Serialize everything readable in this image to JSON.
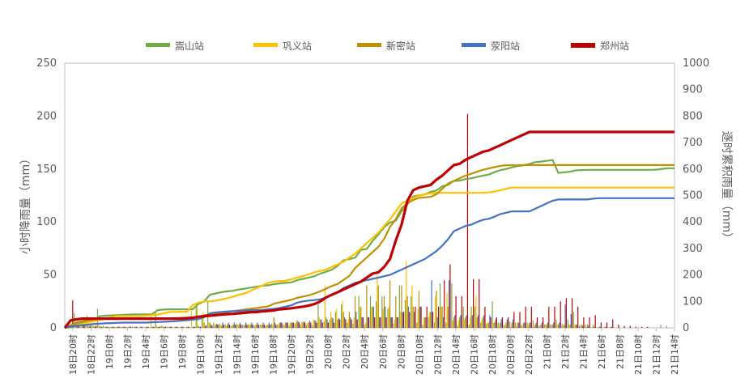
{
  "chart_data": {
    "type": "bar+line",
    "title": "",
    "y_left_label": "小时降雨量（mm）",
    "y_right_label": "逐时累积雨量（mm）",
    "y_left_range": [
      0,
      250
    ],
    "y_left_ticks": [
      "0",
      "50",
      "100",
      "150",
      "200",
      "250"
    ],
    "y_right_range": [
      0,
      1000
    ],
    "y_right_ticks": [
      "0",
      "100",
      "200",
      "300",
      "400",
      "500",
      "600",
      "700",
      "800",
      "900",
      "1000"
    ],
    "x_tick_labels": [
      "18日20时",
      "18日22时",
      "19日0时",
      "19日2时",
      "19日4时",
      "19日6时",
      "19日8时",
      "19日10时",
      "19日12时",
      "19日14时",
      "19日16时",
      "19日18时",
      "19日20时",
      "19日22时",
      "20日0时",
      "20日2时",
      "20日4时",
      "20日6时",
      "20日8时",
      "20日10时",
      "20日12时",
      "20日14时",
      "20日16时",
      "20日18时",
      "20日20时",
      "20日22时",
      "21日0时",
      "21日2时",
      "21日4时",
      "21日6时",
      "21日8时",
      "21日10时",
      "21日12时",
      "21日14时"
    ],
    "legend_position": "top",
    "grid": false,
    "series": [
      {
        "name": "嵩山站",
        "color": "#70ad47",
        "hourly": [
          0,
          2,
          14,
          4,
          3,
          3,
          18,
          2,
          1,
          1,
          1,
          1,
          1,
          0,
          0,
          0,
          16,
          2,
          1,
          0,
          0,
          0,
          0,
          20,
          10,
          25,
          5,
          4,
          3,
          2,
          4,
          3,
          3,
          2,
          3,
          2,
          4,
          3,
          3,
          2,
          4,
          3,
          3,
          2,
          22,
          6,
          8,
          15,
          22,
          5,
          4,
          30,
          3,
          30,
          25,
          30,
          18,
          4,
          40,
          26,
          30,
          5,
          3,
          10,
          5,
          42,
          5,
          42,
          2,
          20,
          3,
          20,
          5,
          4,
          25,
          5,
          3,
          6,
          5,
          3,
          5,
          7,
          2,
          3,
          3,
          8,
          4,
          8,
          15,
          2,
          3,
          0,
          0,
          0,
          0,
          0,
          0,
          0,
          0,
          0,
          0,
          0,
          0,
          3,
          2,
          0
        ],
        "cumulative": [
          0,
          2,
          16,
          20,
          23,
          26,
          44,
          46,
          47,
          48,
          49,
          50,
          51,
          51,
          51,
          51,
          67,
          69,
          70,
          70,
          70,
          70,
          70,
          90,
          100,
          125,
          130,
          135,
          138,
          140,
          145,
          148,
          152,
          155,
          159,
          161,
          165,
          168,
          170,
          172,
          180,
          185,
          190,
          195,
          205,
          212,
          220,
          235,
          255,
          260,
          265,
          295,
          298,
          328,
          353,
          380,
          398,
          405,
          440,
          466,
          496,
          501,
          504,
          514,
          519,
          535,
          540,
          555,
          556,
          562,
          565,
          570,
          575,
          579,
          588,
          596,
          600,
          606,
          611,
          614,
          619,
          626,
          628,
          631,
          634,
          585,
          588,
          590,
          595,
          596,
          597,
          597,
          597,
          597,
          597,
          597,
          597,
          597,
          597,
          597,
          597,
          597,
          598,
          601,
          603,
          603
        ]
      },
      {
        "name": "巩义站",
        "color": "#ffc000",
        "hourly": [
          0,
          1,
          2,
          1,
          12,
          2,
          2,
          1,
          1,
          1,
          1,
          1,
          1,
          1,
          1,
          12,
          2,
          2,
          1,
          1,
          1,
          1,
          16,
          20,
          15,
          5,
          3,
          3,
          2,
          2,
          3,
          2,
          3,
          3,
          3,
          3,
          3,
          3,
          3,
          5,
          5,
          6,
          5,
          8,
          10,
          40,
          15,
          18,
          25,
          8,
          10,
          20,
          5,
          20,
          50,
          18,
          20,
          8,
          15,
          63,
          40,
          18,
          10,
          15,
          30,
          20,
          33,
          7,
          7,
          8,
          10,
          30,
          8,
          5,
          5,
          3,
          2,
          2,
          2,
          2,
          3,
          2,
          2,
          3,
          3,
          3,
          2,
          3,
          3,
          2,
          1,
          1,
          0,
          0,
          0,
          0,
          0,
          0,
          0,
          0,
          0,
          0,
          0,
          0,
          0,
          0
        ],
        "cumulative": [
          0,
          5,
          10,
          15,
          20,
          25,
          30,
          35,
          40,
          45,
          45,
          45,
          45,
          45,
          46,
          48,
          50,
          55,
          60,
          60,
          61,
          61,
          85,
          95,
          100,
          100,
          103,
          107,
          112,
          118,
          125,
          130,
          140,
          150,
          160,
          170,
          175,
          176,
          178,
          183,
          190,
          195,
          202,
          210,
          215,
          220,
          230,
          240,
          250,
          265,
          280,
          300,
          320,
          340,
          360,
          385,
          410,
          440,
          470,
          480,
          490,
          500,
          505,
          508,
          510,
          510,
          510,
          510,
          510,
          510,
          510,
          510,
          510,
          512,
          515,
          520,
          525,
          530,
          530,
          530,
          530,
          530,
          530,
          530,
          530,
          530,
          530,
          530,
          530,
          530,
          530,
          530,
          530,
          530,
          530,
          530,
          530,
          530,
          530,
          530,
          530,
          530,
          530,
          530,
          530,
          530
        ]
      },
      {
        "name": "新密站",
        "color": "#bf9000",
        "hourly": [
          0,
          2,
          4,
          3,
          2,
          2,
          2,
          1,
          1,
          1,
          1,
          1,
          1,
          1,
          1,
          1,
          1,
          1,
          1,
          1,
          1,
          1,
          1,
          2,
          5,
          5,
          3,
          2,
          3,
          3,
          3,
          3,
          3,
          3,
          3,
          3,
          10,
          5,
          5,
          5,
          7,
          5,
          5,
          7,
          8,
          10,
          10,
          8,
          15,
          15,
          30,
          20,
          40,
          20,
          40,
          30,
          45,
          30,
          40,
          30,
          20,
          35,
          10,
          15,
          35,
          20,
          20,
          10,
          10,
          10,
          20,
          10,
          10,
          5,
          5,
          5,
          5,
          5,
          5,
          5,
          5,
          3,
          3,
          3,
          3,
          3,
          3,
          3,
          3,
          3,
          3,
          3,
          1,
          1,
          1,
          0,
          0,
          0,
          0,
          0,
          0,
          0,
          0,
          0,
          0,
          0
        ],
        "cumulative": [
          0,
          10,
          20,
          25,
          30,
          32,
          33,
          34,
          34,
          34,
          35,
          35,
          35,
          35,
          35,
          35,
          35,
          36,
          36,
          37,
          38,
          39,
          40,
          42,
          47,
          52,
          55,
          57,
          60,
          63,
          66,
          69,
          72,
          75,
          78,
          81,
          91,
          96,
          101,
          106,
          113,
          118,
          123,
          130,
          138,
          148,
          158,
          166,
          181,
          196,
          226,
          246,
          266,
          286,
          306,
          336,
          381,
          411,
          451,
          471,
          483,
          491,
          493,
          495,
          505,
          525,
          545,
          555,
          565,
          575,
          582,
          590,
          597,
          602,
          607,
          612,
          614,
          614,
          614,
          615,
          615,
          615,
          615,
          615,
          615,
          615,
          615,
          615,
          615,
          615,
          615,
          615,
          615,
          615,
          615,
          615,
          615,
          615,
          615,
          615,
          615,
          615,
          615,
          615,
          615,
          615
        ]
      },
      {
        "name": "荥阳站",
        "color": "#4472c4",
        "hourly": [
          0,
          1,
          2,
          2,
          1,
          1,
          1,
          1,
          1,
          1,
          1,
          1,
          1,
          1,
          1,
          1,
          1,
          1,
          1,
          1,
          1,
          1,
          1,
          1,
          2,
          3,
          4,
          5,
          5,
          5,
          5,
          5,
          5,
          5,
          5,
          5,
          5,
          5,
          5,
          5,
          6,
          6,
          7,
          7,
          8,
          8,
          9,
          9,
          10,
          10,
          15,
          10,
          10,
          20,
          10,
          20,
          10,
          10,
          15,
          20,
          15,
          20,
          10,
          45,
          10,
          10,
          45,
          12,
          12,
          12,
          12,
          12,
          12,
          12,
          8,
          8,
          8,
          8,
          5,
          5,
          5,
          5,
          5,
          5,
          5,
          5,
          22,
          13,
          3,
          2,
          2,
          1,
          1,
          1,
          1,
          0,
          0,
          0,
          0,
          0,
          0,
          0,
          0,
          0,
          0,
          0
        ],
        "cumulative": [
          0,
          5,
          8,
          10,
          12,
          15,
          16,
          17,
          18,
          19,
          20,
          20,
          20,
          20,
          20,
          21,
          22,
          23,
          24,
          25,
          27,
          29,
          31,
          33,
          40,
          55,
          58,
          60,
          62,
          63,
          64,
          65,
          66,
          67,
          68,
          70,
          72,
          75,
          80,
          85,
          95,
          100,
          103,
          105,
          108,
          115,
          125,
          135,
          150,
          160,
          170,
          175,
          180,
          185,
          190,
          195,
          200,
          210,
          220,
          230,
          240,
          250,
          260,
          275,
          290,
          310,
          335,
          365,
          375,
          385,
          390,
          400,
          408,
          412,
          420,
          430,
          435,
          440,
          440,
          440,
          440,
          450,
          460,
          470,
          480,
          485,
          485,
          485,
          485,
          485,
          485,
          488,
          490,
          490,
          490,
          490,
          490,
          490,
          490,
          490,
          490,
          490,
          490,
          490,
          490,
          490
        ]
      },
      {
        "name": "郑州站",
        "color": "#c00000",
        "hourly": [
          0,
          26,
          5,
          2,
          2,
          2,
          1,
          1,
          1,
          1,
          1,
          1,
          1,
          1,
          1,
          1,
          1,
          1,
          1,
          1,
          1,
          1,
          1,
          1,
          2,
          2,
          3,
          3,
          3,
          3,
          3,
          3,
          3,
          3,
          3,
          3,
          3,
          5,
          5,
          5,
          5,
          5,
          5,
          5,
          5,
          5,
          5,
          8,
          8,
          8,
          8,
          10,
          10,
          10,
          10,
          10,
          10,
          10,
          15,
          15,
          20,
          20,
          20,
          15,
          20,
          45,
          60,
          30,
          30,
          202,
          46,
          46,
          20,
          10,
          10,
          10,
          10,
          15,
          15,
          20,
          20,
          10,
          10,
          20,
          20,
          25,
          28,
          28,
          20,
          10,
          10,
          12,
          5,
          5,
          8,
          3,
          2,
          2,
          1,
          1,
          1,
          0,
          0,
          0,
          0,
          0
        ],
        "cumulative": [
          0,
          28,
          32,
          35,
          35,
          35,
          35,
          35,
          35,
          35,
          35,
          35,
          35,
          35,
          35,
          35,
          35,
          35,
          35,
          35,
          35,
          36,
          38,
          42,
          44,
          46,
          48,
          50,
          52,
          53,
          55,
          57,
          59,
          60,
          62,
          64,
          66,
          70,
          72,
          74,
          77,
          80,
          84,
          90,
          100,
          115,
          125,
          135,
          145,
          155,
          165,
          175,
          190,
          205,
          210,
          230,
          260,
          330,
          390,
          480,
          520,
          530,
          535,
          540,
          560,
          575,
          595,
          615,
          620,
          635,
          645,
          655,
          665,
          670,
          680,
          690,
          700,
          710,
          720,
          730,
          740,
          740,
          740,
          740,
          740,
          740,
          740,
          740,
          740,
          740,
          740,
          740,
          740,
          740,
          740,
          740,
          740,
          740,
          740,
          740,
          740,
          740,
          740,
          740,
          740,
          740
        ]
      }
    ]
  }
}
